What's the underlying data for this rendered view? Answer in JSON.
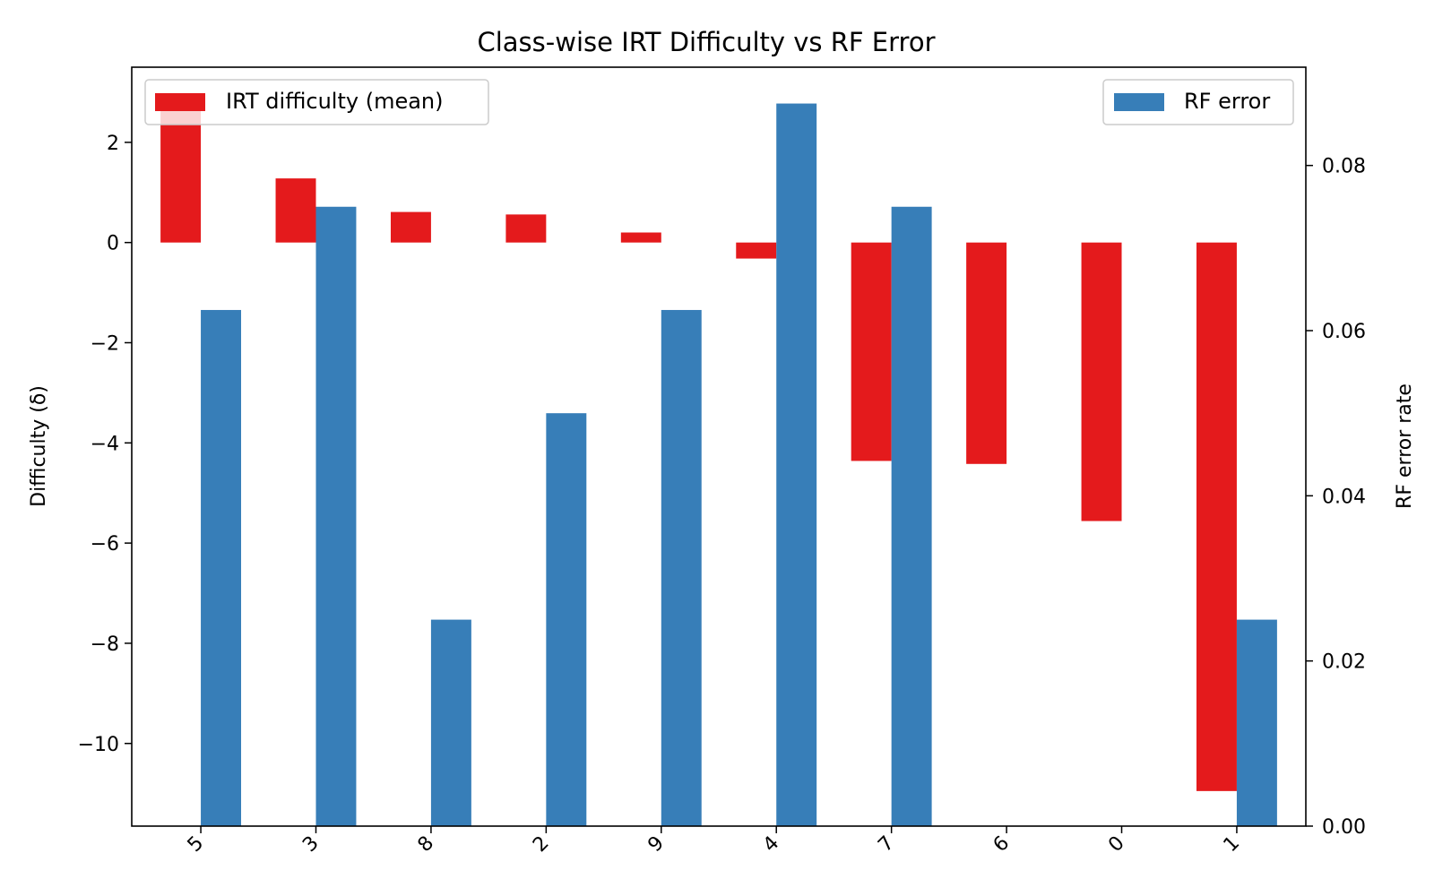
{
  "chart_data": {
    "type": "bar",
    "title": "Class-wise IRT Difficulty vs RF Error",
    "categories": [
      "5",
      "3",
      "8",
      "2",
      "9",
      "4",
      "7",
      "6",
      "0",
      "1"
    ],
    "series": [
      {
        "name": "IRT difficulty (mean)",
        "axis": "left",
        "color": "#e41a1c",
        "values": [
          2.82,
          1.28,
          0.61,
          0.56,
          0.2,
          -0.32,
          -4.36,
          -4.42,
          -5.56,
          -10.95
        ]
      },
      {
        "name": "RF error",
        "axis": "right",
        "color": "#377eb8",
        "values": [
          0.0625,
          0.075,
          0.025,
          0.05,
          0.0625,
          0.0875,
          0.075,
          0.0,
          0.0,
          0.025
        ]
      }
    ],
    "ylabel": "Difficulty (δ)",
    "ylabel_right": "RF error rate",
    "ylim": [
      -11.65,
      3.5
    ],
    "ylim_right": [
      0,
      0.0919
    ],
    "yticks": [
      2,
      0,
      -2,
      -4,
      -6,
      -8,
      -10
    ],
    "ytick_labels": [
      "2",
      "0",
      "−2",
      "−4",
      "−6",
      "−8",
      "−10"
    ],
    "yticks_right": [
      0.0,
      0.02,
      0.04,
      0.06,
      0.08
    ],
    "ytick_right_labels": [
      "0.00",
      "0.02",
      "0.04",
      "0.06",
      "0.08"
    ],
    "grid": false,
    "legend_left": "top-left",
    "legend_right": "top-right"
  }
}
